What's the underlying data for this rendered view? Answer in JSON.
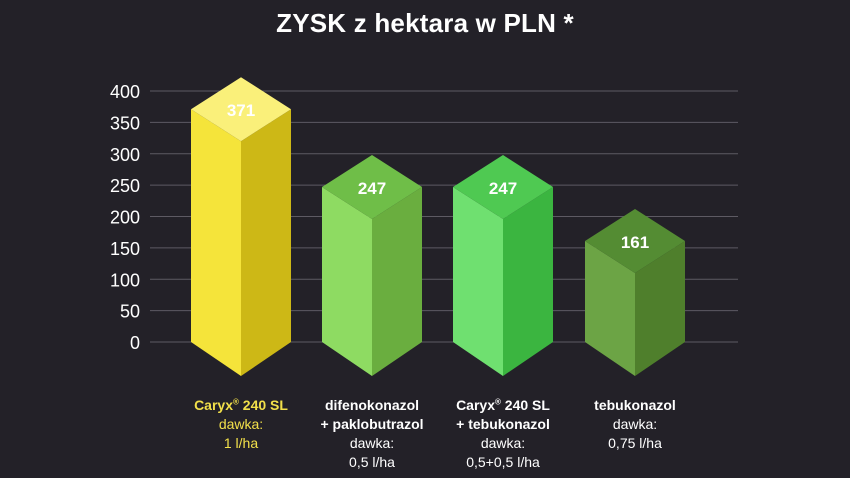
{
  "chart_data": {
    "type": "bar",
    "title": "ZYSK z hektara w PLN *",
    "xlabel": "",
    "ylabel": "",
    "ylim": [
      0,
      400
    ],
    "yticks": [
      0,
      50,
      100,
      150,
      200,
      250,
      300,
      350,
      400
    ],
    "grid": true,
    "categories": [
      {
        "name": "Caryx",
        "reg": "®",
        "name_rest": " 240 SL",
        "line2": "",
        "dose_label": "dawka:",
        "dose": "1 l/ha",
        "highlight": true
      },
      {
        "name": "difenokonazol",
        "reg": "",
        "name_rest": "",
        "line2": "+ paklobutrazol",
        "dose_label": "dawka:",
        "dose": "0,5 l/ha",
        "highlight": false
      },
      {
        "name": "Caryx",
        "reg": "®",
        "name_rest": " 240 SL",
        "line2": "+ tebukonazol",
        "dose_label": "dawka:",
        "dose": "0,5+0,5 l/ha",
        "highlight": false
      },
      {
        "name": "tebukonazol",
        "reg": "",
        "name_rest": "",
        "line2": "",
        "dose_label": "dawka:",
        "dose": "0,75 l/ha",
        "highlight": false
      }
    ],
    "values": [
      371,
      247,
      247,
      161
    ],
    "data_labels": [
      "371",
      "247",
      "247",
      "161"
    ],
    "colors": [
      {
        "front": "#f5e43a",
        "side": "#cdb816",
        "top": "#faf07a"
      },
      {
        "front": "#8edb62",
        "side": "#6aae3f",
        "top": "#6fbe48"
      },
      {
        "front": "#6fe070",
        "side": "#3bb540",
        "top": "#4fc952"
      },
      {
        "front": "#6ca445",
        "side": "#4f7f2c",
        "top": "#548c33"
      }
    ]
  }
}
